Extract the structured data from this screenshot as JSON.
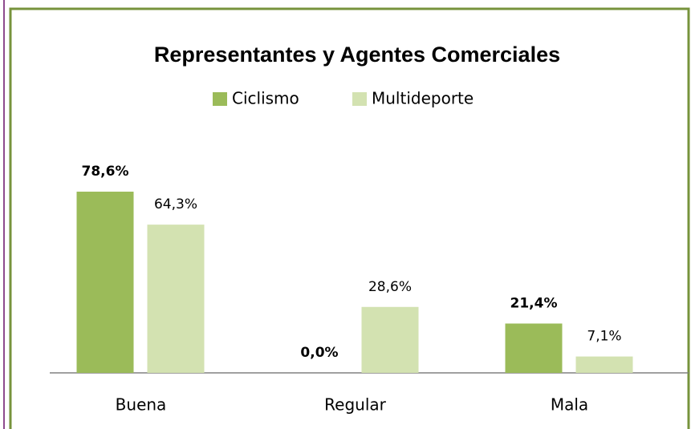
{
  "chart_data": {
    "type": "bar",
    "title": "Representantes y Agentes Comerciales",
    "categories": [
      "Buena",
      "Regular",
      "Mala"
    ],
    "series": [
      {
        "name": "Ciclismo",
        "color": "#9bbb59",
        "values": [
          78.6,
          0.0,
          21.4
        ],
        "value_labels": [
          "78,6%",
          "0,0%",
          "21,4%"
        ],
        "bold_labels": true
      },
      {
        "name": "Multideporte",
        "color": "#d3e2b1",
        "values": [
          64.3,
          28.6,
          7.1
        ],
        "value_labels": [
          "64,3%",
          "28,6%",
          "7,1%"
        ],
        "bold_labels": false
      }
    ],
    "legend": "top"
  }
}
